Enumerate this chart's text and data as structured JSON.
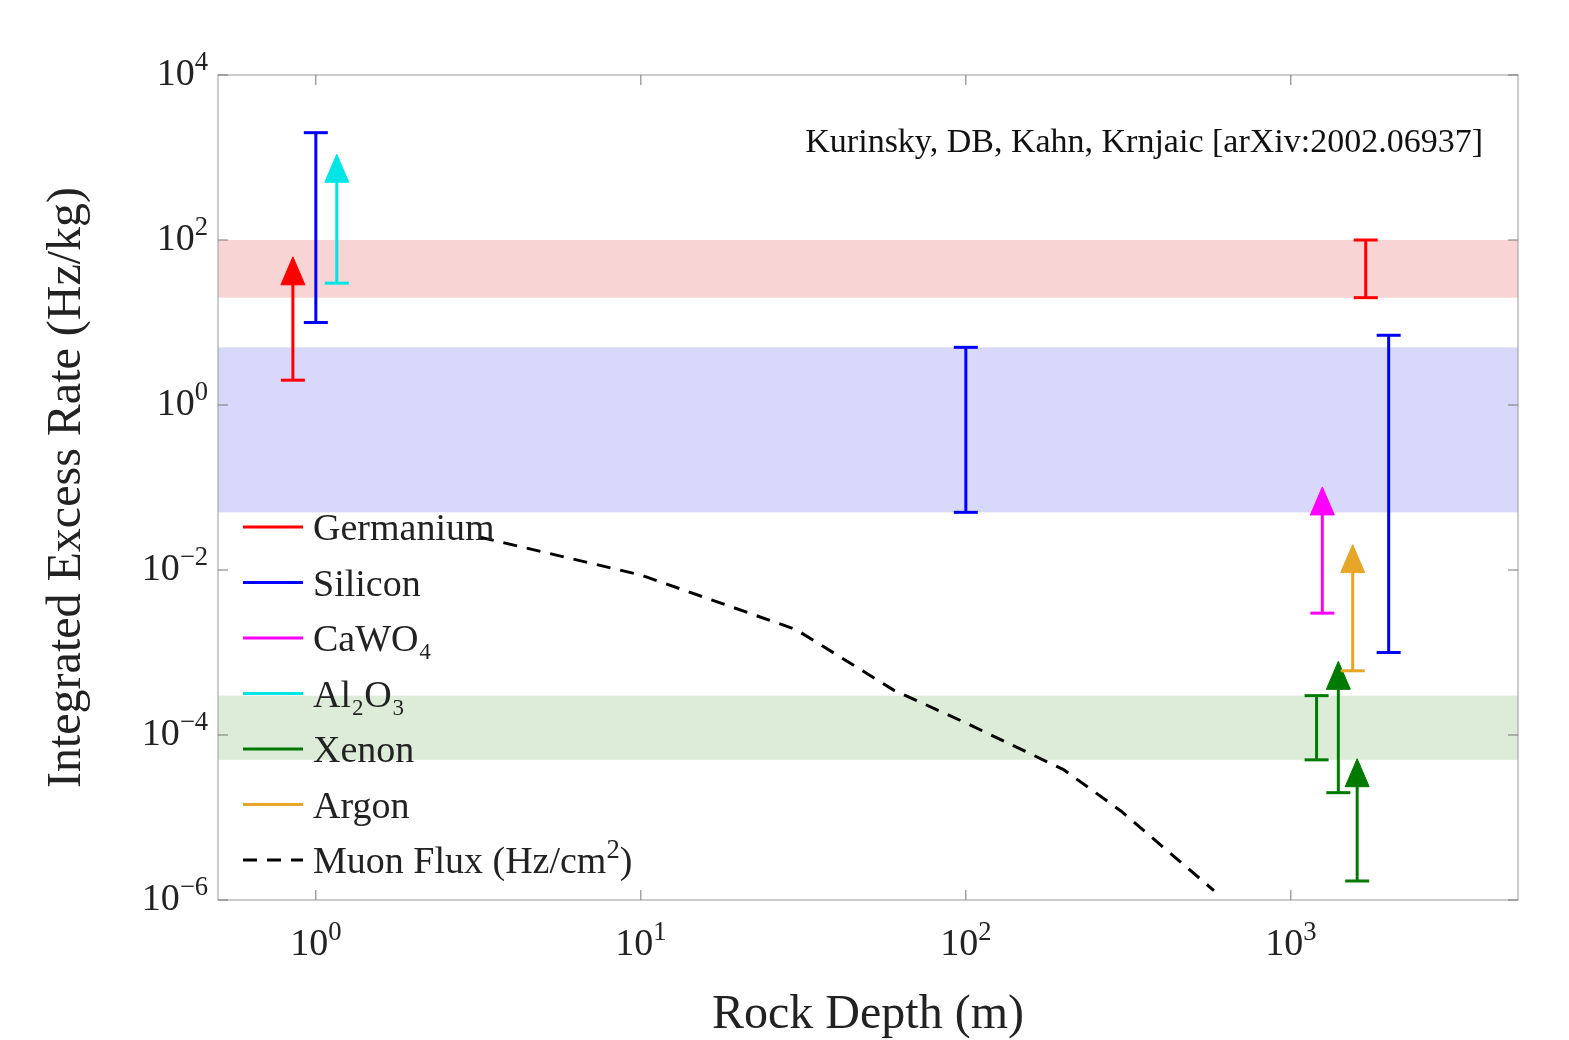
{
  "chart_data": {
    "type": "scatter",
    "xlabel": "Rock Depth (m)",
    "ylabel": "Integrated Excess Rate (Hz/kg)",
    "annotations": [
      "Kurinsky, DB, Kahn, Krnjaic [arXiv:2002.06937]"
    ],
    "log": "xy",
    "grid": false,
    "legend": "bottom left",
    "xlim": [
      0.5,
      5000
    ],
    "xticks": [
      {
        "value": 1,
        "label": "10$^{0}$"
      },
      {
        "value": 10,
        "label": "10$^{1}$"
      },
      {
        "value": 100,
        "label": "10$^{2}$"
      },
      {
        "value": 1000,
        "label": "10$^{3}$"
      }
    ],
    "ylim": [
      1e-06,
      10000
    ],
    "yticks": [
      {
        "value": 1e-06,
        "label": "10$^{−6}$"
      },
      {
        "value": 0.0001,
        "label": "10$^{−4}$"
      },
      {
        "value": 0.01,
        "label": "10$^{−2}$"
      },
      {
        "value": 1,
        "label": "10$^{0}$"
      },
      {
        "value": 100,
        "label": "10$^{2}$"
      },
      {
        "value": 10000,
        "label": "10$^{4}$"
      }
    ],
    "bands": [
      {
        "axis": "y",
        "from": 20,
        "to": 100,
        "color": "#f8d4d4"
      },
      {
        "axis": "y",
        "from": 0.05,
        "to": 5,
        "color": "#d8d8fa"
      },
      {
        "axis": "y",
        "from": 5e-05,
        "to": 0.0003,
        "color": "#dcecd8"
      }
    ],
    "series": [
      {
        "name": "Germanium",
        "color": "#ff0000",
        "marker": "triangle",
        "x": [
          0.85
        ],
        "values": [
          40
        ],
        "errors": [
          [
            2,
            40
          ]
        ]
      },
      {
        "name": "Silicon",
        "type": "bar",
        "color": "#0000ff",
        "x": [
          1,
          100,
          2000
        ],
        "base": [
          10,
          0.05,
          0.001
        ],
        "values": [
          1990,
          4.95,
          6.999
        ]
      },
      {
        "name": "CaWO₄",
        "color": "#ff00ff",
        "marker": "triangle",
        "x": [
          1250
        ],
        "values": [
          0.065
        ],
        "errors": [
          [
            0.003,
            0.065
          ]
        ]
      },
      {
        "name": "Al₂O₃",
        "color": "#00e5e5",
        "marker": "triangle",
        "x": [
          1.16
        ],
        "values": [
          700
        ],
        "errors": [
          [
            30,
            700
          ]
        ]
      },
      {
        "name": "Xenon",
        "color": "#007a00",
        "marker": "triangle",
        "x": [
          1400,
          1600
        ],
        "values": [
          0.0005,
          3.3e-05
        ],
        "errors": [
          [
            2e-05,
            0.0005
          ],
          [
            1.7e-06,
            3.3e-05
          ]
        ]
      },
      {
        "name": "Argon",
        "color": "#e8a628",
        "marker": "triangle",
        "x": [
          1550
        ],
        "values": [
          0.013
        ],
        "errors": [
          [
            0.0006,
            0.013
          ]
        ]
      },
      {
        "name": "Muon Flux (Hz/cm$^{2}$)",
        "type": "line",
        "color": "#000000",
        "line_style": "dashed",
        "marker": "none",
        "x": [
          3.2,
          10,
          30,
          60,
          100,
          200,
          300,
          580
        ],
        "values": [
          0.025,
          0.0087,
          0.0019,
          0.00035,
          0.00014,
          3.8e-05,
          1.2e-05,
          1.3e-06
        ]
      },
      {
        "type": "bar",
        "color": "#ff0000",
        "x": [
          1700
        ],
        "base": [
          20
        ],
        "values": [
          80
        ]
      },
      {
        "type": "bar",
        "color": "#007a00",
        "x": [
          1200
        ],
        "base": [
          5e-05
        ],
        "values": [
          0.00025
        ]
      }
    ]
  }
}
